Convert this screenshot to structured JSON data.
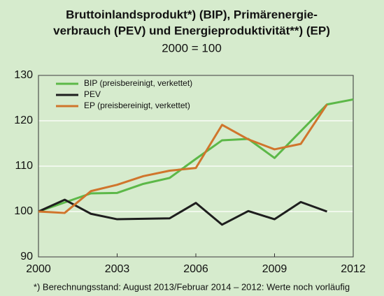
{
  "chart_data": {
    "type": "line",
    "title": [
      "Bruttoinlandsprodukt*) (BIP), Primärenergie-",
      "verbrauch (PEV) und Energieproduktivität**) (EP)"
    ],
    "subtitle": "2000 = 100",
    "footnote": "*) Berechnungsstand: August 2013/Februar 2014 – 2012: Werte noch vorläufig",
    "x": [
      2000,
      2001,
      2002,
      2003,
      2004,
      2005,
      2006,
      2007,
      2008,
      2009,
      2010,
      2011,
      2012
    ],
    "series": [
      {
        "name": "BIP (preisbereinigt, verkettet)",
        "color": "#5cb848",
        "values": [
          100,
          102,
          104,
          104.1,
          106.1,
          107.4,
          111.6,
          115.7,
          116,
          111.8,
          117.7,
          123.6,
          124.7
        ]
      },
      {
        "name": "PEV",
        "color": "#1e1e1e",
        "values": [
          100,
          102.6,
          99.5,
          98.3,
          98.4,
          98.5,
          101.9,
          97.1,
          100.1,
          98.3,
          102.1,
          100,
          null
        ]
      },
      {
        "name": "EP (preisbereinigt, verkettet)",
        "color": "#d0752c",
        "values": [
          100,
          99.7,
          104.5,
          105.9,
          107.8,
          109,
          109.6,
          119.1,
          115.9,
          113.7,
          114.9,
          123.6,
          null
        ]
      }
    ],
    "xlim": [
      2000,
      2012
    ],
    "xticks": [
      2000,
      2003,
      2006,
      2009,
      2012
    ],
    "ylim": [
      90,
      130
    ],
    "yticks": [
      90,
      100,
      110,
      120,
      130
    ],
    "grid": true,
    "legend": "top-left"
  }
}
